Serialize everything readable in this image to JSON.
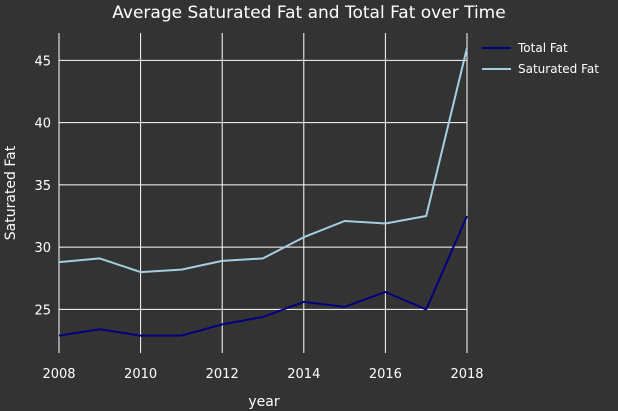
{
  "chart_data": {
    "type": "line",
    "title": "Average Saturated Fat and Total Fat over Time",
    "xlabel": "year",
    "ylabel": "Saturated Fat",
    "x": [
      2008,
      2009,
      2010,
      2011,
      2012,
      2013,
      2014,
      2015,
      2016,
      2017,
      2018
    ],
    "xlim": [
      2008,
      2018
    ],
    "ylim": [
      21.5,
      47.2
    ],
    "x_ticks": [
      2008,
      2010,
      2012,
      2014,
      2016,
      2018
    ],
    "y_ticks": [
      25,
      30,
      35,
      40,
      45
    ],
    "grid": true,
    "legend_position": "top-right",
    "series": [
      {
        "name": "Total Fat",
        "color": "#00007f",
        "values": [
          22.9,
          23.4,
          22.9,
          22.9,
          23.8,
          24.4,
          25.6,
          25.2,
          26.4,
          25.0,
          32.5
        ]
      },
      {
        "name": "Saturated Fat",
        "color": "#a6cee3",
        "values": [
          28.8,
          29.1,
          28.0,
          28.2,
          28.9,
          29.1,
          30.8,
          32.1,
          31.9,
          32.5,
          46.0
        ]
      }
    ]
  }
}
